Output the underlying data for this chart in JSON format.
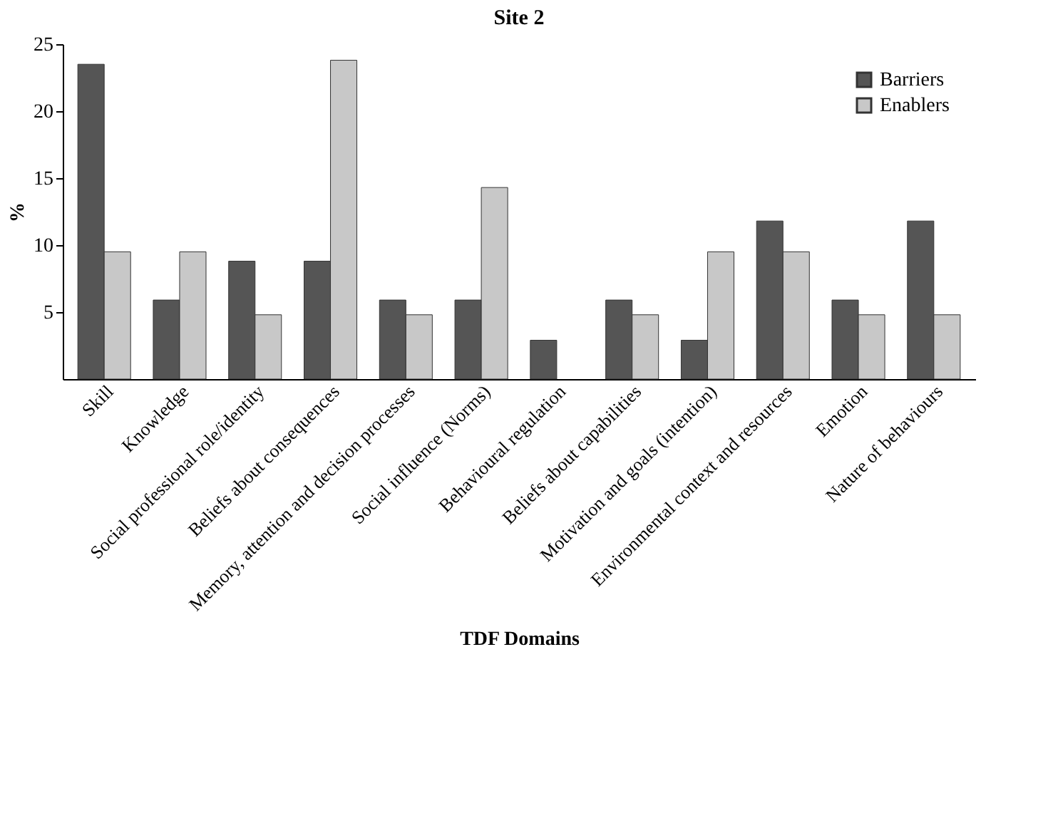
{
  "chart_data": {
    "type": "bar",
    "title": "Site 2",
    "xlabel": "TDF Domains",
    "ylabel": "%",
    "categories": [
      "Skill",
      "Knowledge",
      "Social professional role/identity",
      "Beliefs about consequences",
      "Memory, attention and decision processes",
      "Social influence (Norms)",
      "Behavioural regulation",
      "Beliefs about capabilities",
      "Motivation and goals (intention)",
      "Environmental context and resources",
      "Emotion",
      "Nature of behaviours"
    ],
    "series": [
      {
        "name": "Barriers",
        "color": "#555555",
        "values": [
          23.5,
          5.9,
          8.8,
          8.8,
          5.9,
          5.9,
          2.9,
          5.9,
          2.9,
          11.8,
          5.9,
          11.8
        ]
      },
      {
        "name": "Enablers",
        "color": "#c8c8c8",
        "values": [
          9.5,
          9.5,
          4.8,
          23.8,
          4.8,
          14.3,
          null,
          4.8,
          9.5,
          9.5,
          4.8,
          4.8
        ]
      }
    ],
    "ylim": [
      0,
      25
    ],
    "yticks": [
      5,
      10,
      15,
      20,
      25
    ],
    "grid": false,
    "legend": "top right"
  }
}
